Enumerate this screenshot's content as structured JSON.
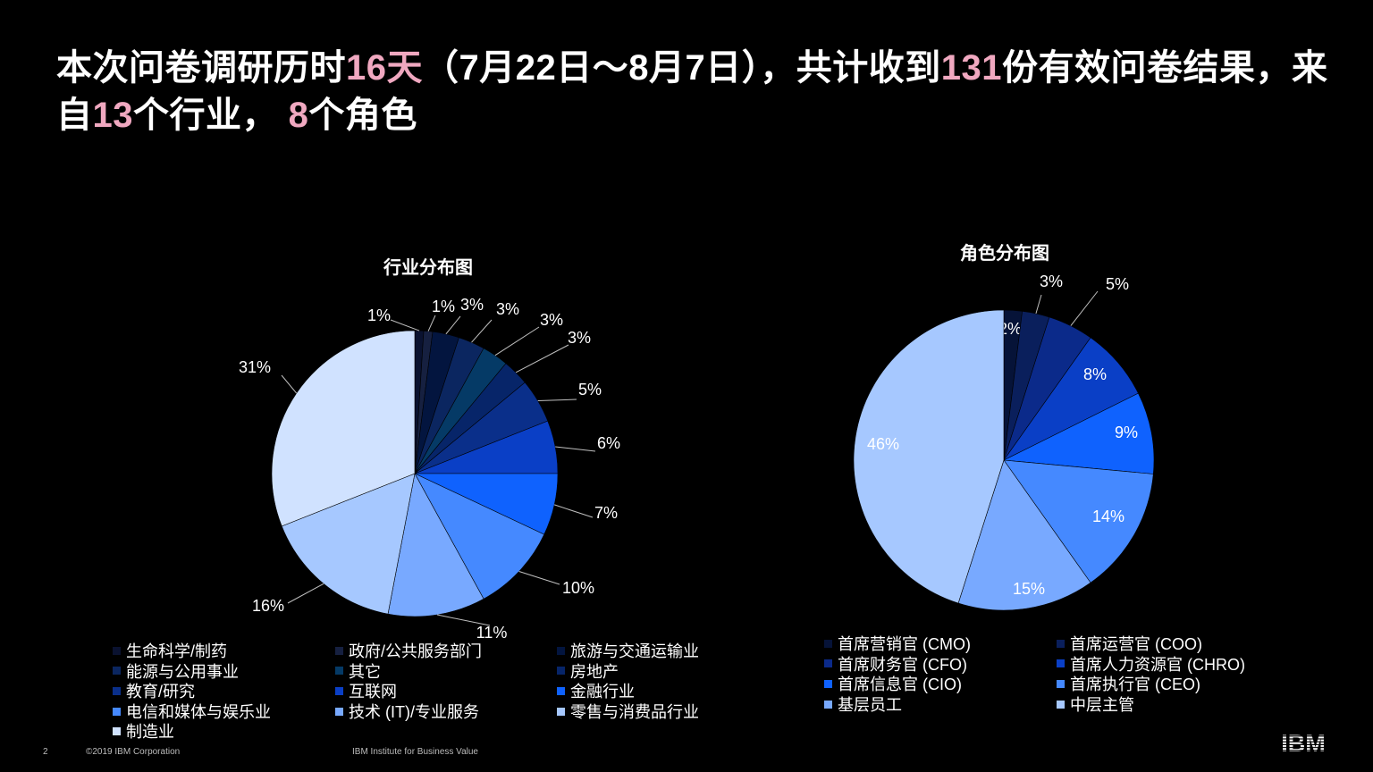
{
  "title": {
    "p1": "本次问卷调研历时",
    "days": "16天",
    "p2": "（7月22日～8月7日），共计收到",
    "count": "131",
    "p3": "份有效问卷结果，来自",
    "industries": "13",
    "p4": "个行业，",
    "roles": "8",
    "p5": "个角色"
  },
  "chart_data": [
    {
      "type": "pie",
      "title": "行业分布图",
      "labels": [
        "生命科学/制药",
        "政府/公共服务部门",
        "旅游与交通运输业",
        "能源与公用事业",
        "其它",
        "房地产",
        "教育/研究",
        "互联网",
        "金融行业",
        "电信和媒体与娱乐业",
        "技术 (IT)/专业服务",
        "零售与消费品行业",
        "制造业"
      ],
      "values": [
        1,
        1,
        3,
        3,
        3,
        3,
        5,
        6,
        7,
        10,
        11,
        16,
        31
      ],
      "value_labels": [
        "1%",
        "1%",
        "3%",
        "3%",
        "3%",
        "3%",
        "5%",
        "6%",
        "7%",
        "10%",
        "11%",
        "16%",
        "31%"
      ],
      "colors": [
        "#0a1230",
        "#162040",
        "#03153f",
        "#0b2660",
        "#053a66",
        "#072569",
        "#0a2f8a",
        "#0a3fc6",
        "#0f62fe",
        "#4589ff",
        "#78a9ff",
        "#a6c8ff",
        "#d0e2ff"
      ],
      "legend_position": "bottom"
    },
    {
      "type": "pie",
      "title": "角色分布图",
      "labels": [
        "首席营销官 (CMO)",
        "首席运营官 (COO)",
        "首席财务官 (CFO)",
        "首席人力资源官 (CHRO)",
        "首席信息官 (CIO)",
        "首席执行官 (CEO)",
        "基层员工",
        "中层主管"
      ],
      "values": [
        2,
        3,
        5,
        8,
        9,
        14,
        15,
        46
      ],
      "value_labels": [
        "2%",
        "3%",
        "5%",
        "8%",
        "9%",
        "14%",
        "15%",
        "46%"
      ],
      "colors": [
        "#061338",
        "#0a1f5c",
        "#0b2a8a",
        "#0a3fc6",
        "#0f62fe",
        "#4589ff",
        "#78a9ff",
        "#a6c8ff"
      ],
      "legend_position": "bottom"
    }
  ],
  "footer": {
    "page_number": "2",
    "copyright": "©2019 IBM Corporation",
    "institute": "IBM Institute for Business Value",
    "logo_text": "IBM"
  }
}
